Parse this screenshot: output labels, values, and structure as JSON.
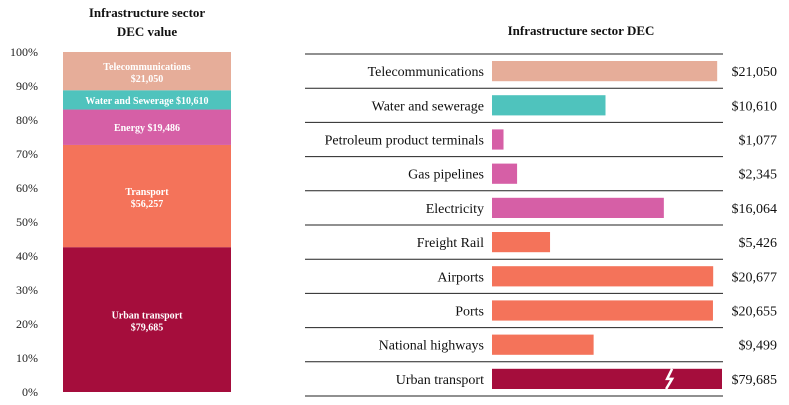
{
  "chart_data": [
    {
      "type": "bar",
      "subtype": "stacked-100-percent",
      "title_lines": [
        "Infrastructure sector",
        "DEC value"
      ],
      "ylim": [
        0,
        100
      ],
      "y_ticks": [
        "0%",
        "10%",
        "20%",
        "30%",
        "40%",
        "50%",
        "60%",
        "70%",
        "80%",
        "90%",
        "100%"
      ],
      "segments": [
        {
          "name": "Urban transport",
          "value": 79685,
          "value_label": "$79,685",
          "color": "#a50d3c",
          "stacked_label": true
        },
        {
          "name": "Transport",
          "value": 56257,
          "value_label": "$56,257",
          "color": "#f4735a",
          "stacked_label": true
        },
        {
          "name": "Energy",
          "value": 19486,
          "value_label": "$19,486",
          "color": "#d65fa6",
          "stacked_label": false
        },
        {
          "name": "Water and Sewerage",
          "value": 10610,
          "value_label": "$10,610",
          "color": "#4fc3bd",
          "stacked_label": false
        },
        {
          "name": "Telecommunications",
          "value": 21050,
          "value_label": "$21,050",
          "color": "#e6ad99",
          "stacked_label": true
        }
      ]
    },
    {
      "type": "bar",
      "orientation": "horizontal",
      "title": "Infrastructure sector DEC",
      "axis_break_on": "Urban transport",
      "categories": [
        "Telecommunications",
        "Water and sewerage",
        "Petroleum product terminals",
        "Gas pipelines",
        "Electricity",
        "Freight Rail",
        "Airports",
        "Ports",
        "National highways",
        "Urban transport"
      ],
      "values": [
        21050,
        10610,
        1077,
        2345,
        16064,
        5426,
        20677,
        20655,
        9499,
        79685
      ],
      "value_labels": [
        "$21,050",
        "$10,610",
        "$1,077",
        "$2,345",
        "$16,064",
        "$5,426",
        "$20,677",
        "$20,655",
        "$9,499",
        "$79,685"
      ],
      "colors": [
        "#e6ad99",
        "#4fc3bd",
        "#d65fa6",
        "#d65fa6",
        "#d65fa6",
        "#f4735a",
        "#f4735a",
        "#f4735a",
        "#f4735a",
        "#a50d3c"
      ],
      "xlim": [
        0,
        21500
      ]
    }
  ]
}
